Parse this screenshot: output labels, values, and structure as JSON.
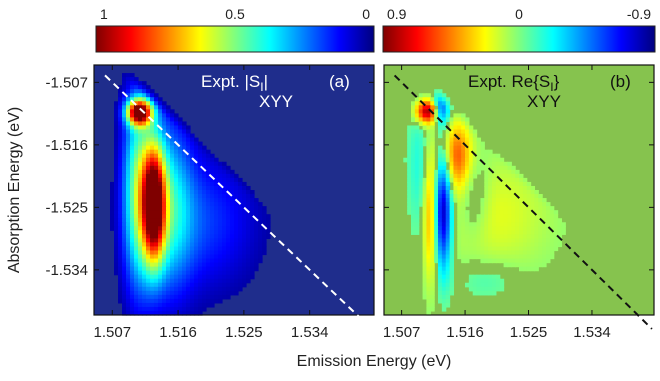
{
  "figure": {
    "xlabel": "Emission Energy (eV)",
    "ylabel": "Absorption Energy (eV)"
  },
  "colors": {
    "jet": [
      "#00007f",
      "#0000ff",
      "#007fff",
      "#00ffff",
      "#7fff7f",
      "#ffff00",
      "#ff7f00",
      "#ff0000",
      "#7f0000"
    ],
    "panel_a_background": "#1f2d8c",
    "panel_b_background": "#86c34e",
    "diagonal_a": "#ffffff",
    "diagonal_b": "#111111"
  },
  "chart_data": [
    {
      "type": "heatmap",
      "panel_label": "(a)",
      "title_line1": "Expt. |S",
      "title_sub": "I",
      "title_line1_end": "|",
      "title_line2": "XYY",
      "quantity": "abs",
      "colorbar": {
        "ticks": [
          {
            "value": 1,
            "label": "1"
          },
          {
            "value": 0.5,
            "label": "0.5"
          },
          {
            "value": 0,
            "label": "0"
          }
        ],
        "range": [
          1,
          0
        ],
        "colormap": "jet-reversed"
      },
      "x_ticks": [
        1.507,
        1.516,
        1.525,
        1.534
      ],
      "y_ticks": [
        -1.507,
        -1.516,
        -1.525,
        -1.534
      ],
      "x_tick_labels": [
        "1.507",
        "1.516",
        "1.525",
        "1.534"
      ],
      "y_tick_labels": [
        "-1.507",
        "-1.516",
        "-1.525",
        "-1.534"
      ],
      "xlim": [
        1.5045,
        1.5428
      ],
      "ylim": [
        -1.5405,
        -1.5045
      ],
      "diagonal": {
        "style": "dashed",
        "from": [
          1.506,
          -1.506
        ],
        "to": [
          1.5425,
          -1.5425
        ]
      },
      "features": [
        {
          "x": 1.5107,
          "y": -1.5113,
          "amplitude": 0.95,
          "sx": 0.0012,
          "sy": 0.0013
        },
        {
          "x": 1.5127,
          "y": -1.5245,
          "amplitude": 0.9,
          "sx": 0.0011,
          "sy": 0.006
        },
        {
          "x": 1.5105,
          "y": -1.5225,
          "amplitude": 0.45,
          "sx": 0.0015,
          "sy": 0.01
        },
        {
          "x": 1.5148,
          "y": -1.5245,
          "amplitude": 0.3,
          "sx": 0.0022,
          "sy": 0.009
        },
        {
          "x": 1.519,
          "y": -1.527,
          "amplitude": 0.18,
          "sx": 0.0055,
          "sy": 0.007
        }
      ]
    },
    {
      "type": "heatmap",
      "panel_label": "(b)",
      "title_line1": "Expt. Re{S",
      "title_sub": "I",
      "title_line1_end": "}",
      "title_line2": "XYY",
      "quantity": "real",
      "colorbar": {
        "ticks": [
          {
            "value": 0.9,
            "label": "0.9"
          },
          {
            "value": 0,
            "label": "0"
          },
          {
            "value": -0.9,
            "label": "-0.9"
          }
        ],
        "range": [
          0.9,
          -0.9
        ],
        "colormap": "jet-reversed"
      },
      "x_ticks": [
        1.507,
        1.516,
        1.525,
        1.534
      ],
      "x_tick_labels": [
        "1.507",
        "1.516",
        "1.525",
        "1.534"
      ],
      "xlim": [
        1.5045,
        1.5428
      ],
      "ylim": [
        -1.5405,
        -1.5045
      ],
      "diagonal": {
        "style": "dashed",
        "from": [
          1.506,
          -1.506
        ],
        "to": [
          1.5425,
          -1.5425
        ]
      },
      "features": [
        {
          "x": 1.5107,
          "y": -1.5112,
          "amplitude": 0.9,
          "sx": 0.0012,
          "sy": 0.0012
        },
        {
          "x": 1.5125,
          "y": -1.5108,
          "amplitude": -0.65,
          "sx": 0.0009,
          "sy": 0.0016
        },
        {
          "x": 1.5128,
          "y": -1.5255,
          "amplitude": -0.9,
          "sx": 0.0009,
          "sy": 0.006
        },
        {
          "x": 1.5112,
          "y": -1.5255,
          "amplitude": 0.45,
          "sx": 0.0008,
          "sy": 0.007
        },
        {
          "x": 1.5148,
          "y": -1.5175,
          "amplitude": 0.5,
          "sx": 0.0015,
          "sy": 0.0035
        },
        {
          "x": 1.5095,
          "y": -1.52,
          "amplitude": -0.2,
          "sx": 0.0012,
          "sy": 0.007
        },
        {
          "x": 1.52,
          "y": -1.526,
          "amplitude": 0.18,
          "sx": 0.006,
          "sy": 0.006
        },
        {
          "x": 1.5172,
          "y": -1.5235,
          "amplitude": -0.18,
          "sx": 0.0015,
          "sy": 0.004
        },
        {
          "x": 1.519,
          "y": -1.5355,
          "amplitude": -0.12,
          "sx": 0.003,
          "sy": 0.002
        }
      ]
    }
  ]
}
